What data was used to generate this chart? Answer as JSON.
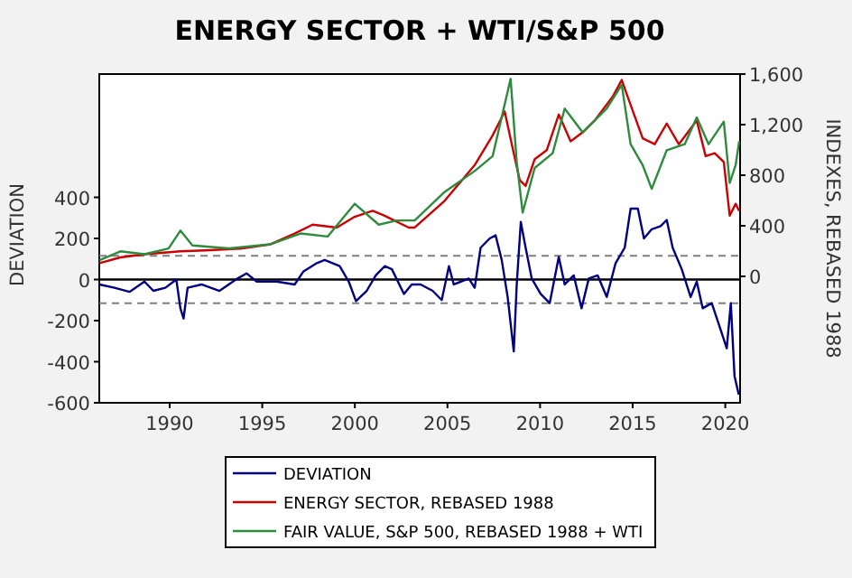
{
  "chart_data": {
    "type": "line",
    "title": "ENERGY SECTOR + WTI/S&P 500",
    "ylabel": "DEVIATION",
    "y2label": "INDEXES, REBASED 1988",
    "xlim": [
      1986.2,
      2020.8
    ],
    "xticks": [
      1990,
      1995,
      2000,
      2005,
      2010,
      2015,
      2020
    ],
    "ylim": [
      -600,
      1000
    ],
    "yticks": [
      -600,
      -400,
      -200,
      0,
      200,
      400
    ],
    "y2lim": [
      -1000,
      1600
    ],
    "y2ticks": [
      0,
      400,
      800,
      {
        "value": 1200,
        "label": "1,200"
      },
      {
        "value": 1600,
        "label": "1,600"
      }
    ],
    "grid": false,
    "legend": "bottom",
    "line_style": "solid",
    "marker": "none",
    "ref_lines": [
      {
        "axis": "y",
        "value": 0,
        "color": "#000000",
        "line_style": "solid"
      },
      {
        "axis": "y",
        "value": 115,
        "color": "#808080",
        "line_style": "dashed"
      },
      {
        "axis": "y",
        "value": -115,
        "color": "#808080",
        "line_style": "dashed"
      }
    ],
    "series": [
      {
        "name": "DEVIATION",
        "color": "#000080",
        "x": [
          1986.21,
          1987.02,
          1987.83,
          1988.64,
          1989.12,
          1989.77,
          1990.36,
          1990.58,
          1990.75,
          1990.97,
          1991.72,
          1992.69,
          1993.67,
          1994.15,
          1994.7,
          1995.77,
          1996.75,
          1997.23,
          1997.95,
          1998.37,
          1999.18,
          1999.67,
          2000.06,
          2000.64,
          2001.13,
          2001.61,
          2002.0,
          2002.65,
          2003.07,
          2003.55,
          2004.2,
          2004.69,
          2005.08,
          2005.34,
          2006.15,
          2006.47,
          2006.79,
          2007.28,
          2007.6,
          2007.93,
          2008.25,
          2008.58,
          2008.74,
          2008.96,
          2009.22,
          2009.55,
          2010.03,
          2010.52,
          2011.01,
          2011.33,
          2011.82,
          2012.24,
          2012.63,
          2013.11,
          2013.6,
          2014.08,
          2014.57,
          2014.89,
          2015.28,
          2015.61,
          2016.03,
          2016.51,
          2016.84,
          2017.16,
          2017.65,
          2018.13,
          2018.46,
          2018.78,
          2019.27,
          2019.75,
          2020.08,
          2020.3,
          2020.5,
          2020.73
        ],
        "values": [
          -24,
          -40,
          -60,
          -10,
          -55,
          -40,
          0,
          -140,
          -190,
          -40,
          -24,
          -55,
          5,
          30,
          -10,
          -10,
          -24,
          40,
          80,
          95,
          65,
          -10,
          -105,
          -55,
          20,
          65,
          50,
          -70,
          -24,
          -24,
          -55,
          -100,
          65,
          -24,
          5,
          -40,
          155,
          200,
          215,
          95,
          -85,
          -350,
          -24,
          280,
          155,
          5,
          -70,
          -115,
          110,
          -24,
          20,
          -140,
          5,
          20,
          -85,
          80,
          155,
          345,
          345,
          200,
          245,
          260,
          290,
          155,
          50,
          -85,
          -10,
          -140,
          -115,
          -245,
          -335,
          -115,
          -470,
          -560
        ]
      },
      {
        "name": "ENERGY SECTOR, REBASED 1988",
        "color": "#cc0000",
        "axis": "y2",
        "x": [
          1986.21,
          1987.34,
          1988.64,
          1990.58,
          1992.21,
          1993.83,
          1995.45,
          1996.75,
          1997.72,
          1999.02,
          1999.99,
          2000.96,
          2001.61,
          2002.91,
          2003.23,
          2004.85,
          2006.47,
          2007.44,
          2008.09,
          2008.58,
          2008.9,
          2009.22,
          2009.71,
          2010.36,
          2011.01,
          2011.65,
          2012.3,
          2012.95,
          2013.92,
          2014.41,
          2014.73,
          2015.54,
          2016.19,
          2016.84,
          2017.49,
          2018.46,
          2018.94,
          2019.43,
          2019.92,
          2020.24,
          2020.56,
          2020.75
        ],
        "values": [
          104,
          150,
          175,
          198,
          207,
          220,
          254,
          339,
          409,
          386,
          471,
          518,
          480,
          386,
          386,
          598,
          880,
          1115,
          1304,
          974,
          762,
          715,
          927,
          998,
          1280,
          1068,
          1139,
          1233,
          1421,
          1553,
          1421,
          1092,
          1045,
          1209,
          1045,
          1233,
          951,
          974,
          904,
          480,
          574,
          518
        ]
      },
      {
        "name": "FAIR VALUE, S&P 500, REBASED 1988 + WTI",
        "color": "#2e8b3e",
        "axis": "y2",
        "x": [
          1986.21,
          1987.34,
          1988.64,
          1989.94,
          1990.58,
          1991.23,
          1993.18,
          1995.45,
          1997.07,
          1998.53,
          1999.99,
          2001.29,
          2002.26,
          2003.23,
          2004.85,
          2006.47,
          2007.44,
          2008.41,
          2008.74,
          2009.06,
          2009.71,
          2010.68,
          2011.33,
          2012.3,
          2013.6,
          2014.41,
          2014.89,
          2015.54,
          2016.03,
          2016.84,
          2017.81,
          2018.46,
          2019.1,
          2019.92,
          2020.24,
          2020.56,
          2020.75
        ],
        "values": [
          127,
          198,
          175,
          221,
          362,
          245,
          221,
          254,
          339,
          315,
          574,
          409,
          442,
          442,
          668,
          833,
          951,
          1562,
          904,
          504,
          857,
          974,
          1327,
          1139,
          1327,
          1515,
          1045,
          880,
          692,
          998,
          1045,
          1257,
          1045,
          1224,
          739,
          880,
          1068
        ]
      }
    ]
  }
}
